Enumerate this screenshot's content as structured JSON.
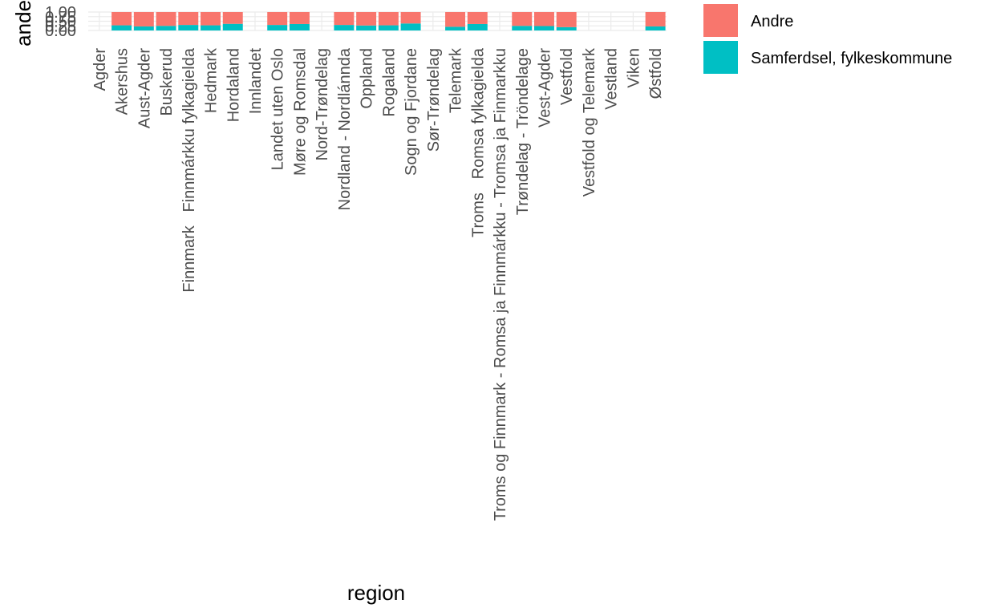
{
  "chart_data": {
    "type": "bar",
    "stacked": true,
    "xlabel": "region",
    "ylabel": "andel",
    "ylim": [
      0,
      1
    ],
    "yticks": [
      "0.00",
      "0.25",
      "0.50",
      "0.75",
      "1.00"
    ],
    "grid": true,
    "legend_position": "right",
    "categories": [
      "Agder",
      "Akershus",
      "Aust-Agder",
      "Buskerud",
      "Finnmark   Finnmárkku fylkagielda",
      "Hedmark",
      "Hordaland",
      "Innlandet",
      "Landet uten Oslo",
      "Møre og Romsdal",
      "Nord-Trøndelag",
      "Nordland - Nordlánnda",
      "Oppland",
      "Rogaland",
      "Sogn og Fjordane",
      "Sør-Trøndelag",
      "Telemark",
      "Troms   Romsa fylkagielda",
      "Troms og Finnmark - Romsa ja Finnmárkku - Tromsa ja Finmarkku",
      "Trøndelag - Tröndelage",
      "Vest-Agder",
      "Vestfold",
      "Vestfold og Telemark",
      "Vestland",
      "Viken",
      "Østfold"
    ],
    "series": [
      {
        "name": "Samferdsel, fylkeskommune",
        "color": "#00BFC4",
        "values": [
          null,
          0.28,
          0.22,
          0.25,
          0.3,
          0.28,
          0.36,
          null,
          0.3,
          0.35,
          null,
          0.3,
          0.27,
          0.28,
          0.38,
          null,
          0.2,
          0.35,
          null,
          0.25,
          0.24,
          0.18,
          null,
          null,
          null,
          0.22
        ]
      },
      {
        "name": "Andre",
        "color": "#F8766D",
        "values": [
          null,
          0.72,
          0.78,
          0.75,
          0.7,
          0.72,
          0.64,
          null,
          0.7,
          0.65,
          null,
          0.7,
          0.73,
          0.72,
          0.62,
          null,
          0.8,
          0.65,
          null,
          0.75,
          0.76,
          0.82,
          null,
          null,
          null,
          0.78
        ]
      }
    ],
    "legend": [
      {
        "label": "Andre",
        "color": "#F8766D"
      },
      {
        "label": "Samferdsel, fylkeskommune",
        "color": "#00BFC4"
      }
    ]
  }
}
